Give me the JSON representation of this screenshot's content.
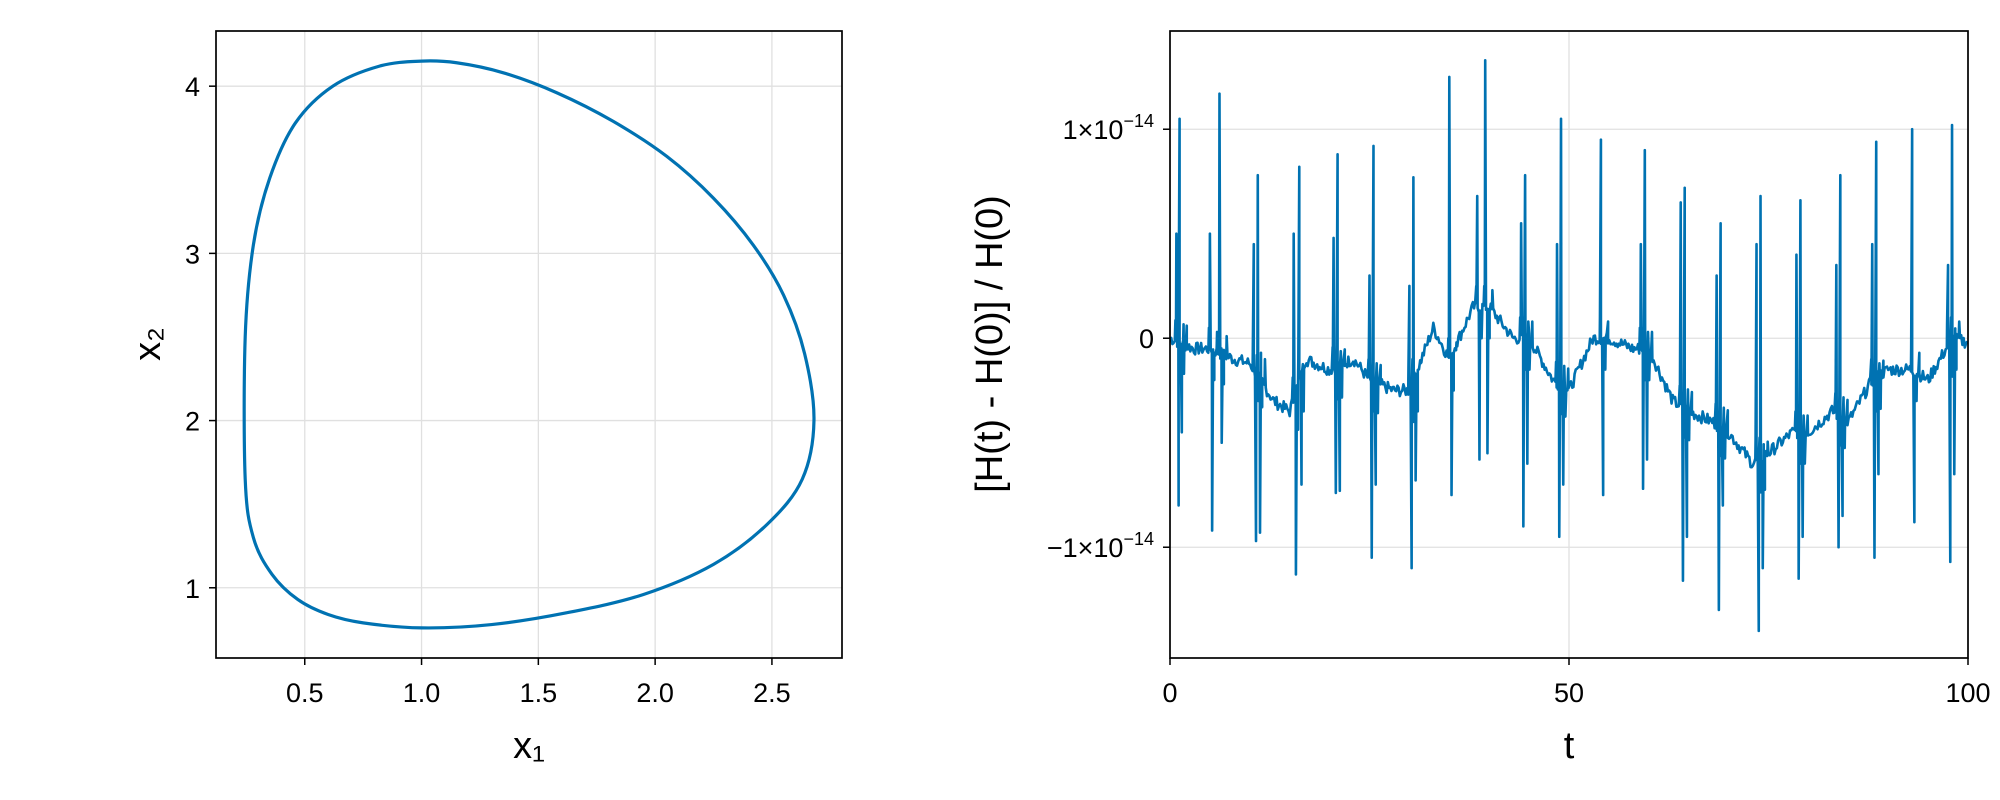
{
  "chart_data": [
    {
      "type": "line",
      "xlabel": "x₁",
      "ylabel": "x₂",
      "xlim": [
        0.12,
        2.8
      ],
      "ylim": [
        0.58,
        4.33
      ],
      "xticks": [
        0.5,
        1.0,
        1.5,
        2.0,
        2.5
      ],
      "xtick_labels": [
        "0.5",
        "1.0",
        "1.5",
        "2.0",
        "2.5"
      ],
      "yticks": [
        1,
        2,
        3,
        4
      ],
      "ytick_labels": [
        "1",
        "2",
        "3",
        "4"
      ],
      "grid": true,
      "series": [
        {
          "color": "#0072b2",
          "closed": true,
          "x": [
            2.68,
            2.64,
            2.55,
            2.42,
            2.25,
            2.05,
            1.82,
            1.58,
            1.35,
            1.15,
            1.0,
            0.82,
            0.62,
            0.46,
            0.35,
            0.28,
            0.245,
            0.245,
            0.28,
            0.36,
            0.47,
            0.6,
            0.75,
            1.0,
            1.3,
            1.62,
            1.95,
            2.25,
            2.48,
            2.63,
            2.68
          ],
          "y": [
            2.0,
            2.4,
            2.75,
            3.05,
            3.33,
            3.58,
            3.79,
            3.96,
            4.08,
            4.14,
            4.15,
            4.12,
            4.0,
            3.78,
            3.45,
            3.05,
            2.5,
            1.65,
            1.3,
            1.08,
            0.93,
            0.84,
            0.79,
            0.76,
            0.78,
            0.85,
            0.96,
            1.14,
            1.38,
            1.65,
            2.0
          ]
        }
      ]
    },
    {
      "type": "line",
      "xlabel": "t",
      "ylabel": "[H(t) - H(0)] / H(0)",
      "xlim": [
        0,
        100
      ],
      "ylim": [
        -1.53e-14,
        1.47e-14
      ],
      "xticks": [
        0,
        50,
        100
      ],
      "xtick_labels": [
        "0",
        "50",
        "100"
      ],
      "yticks": [
        -1e-14,
        0,
        1e-14
      ],
      "ytick_labels": [
        {
          "mantissa": "−1×10",
          "exponent": "−14"
        },
        {
          "mantissa": "0",
          "exponent": ""
        },
        {
          "mantissa": "1×10",
          "exponent": "−14"
        }
      ],
      "grid": true,
      "series": [
        {
          "color": "#0072b2",
          "spike_times": [
            0.8,
            1.2,
            5.0,
            6.2,
            10.5,
            11.0,
            15.5,
            16.2,
            20.5,
            21.0,
            25.0,
            25.5,
            30.0,
            30.5,
            35.0,
            38.5,
            39.5,
            44.0,
            44.5,
            48.5,
            49.0,
            54.0,
            59.0,
            59.5,
            64.0,
            64.5,
            68.5,
            69.0,
            73.5,
            74.0,
            78.5,
            79.0,
            83.5,
            84.0,
            88.0,
            88.5,
            93.0,
            97.5,
            98.0
          ],
          "spike_peaks": [
            5e-15,
            1.05e-14,
            5e-15,
            1.17e-14,
            4.5e-15,
            7.8e-15,
            5e-15,
            8.2e-15,
            4.8e-15,
            8.8e-15,
            3e-15,
            9.2e-15,
            2.5e-15,
            7.7e-15,
            1.25e-14,
            6.8e-15,
            1.33e-14,
            5.5e-15,
            7.8e-15,
            4.5e-15,
            1.05e-14,
            9.5e-15,
            4.5e-15,
            9e-15,
            6.5e-15,
            7.2e-15,
            3e-15,
            5.5e-15,
            4.5e-15,
            6.8e-15,
            4e-15,
            6.6e-15,
            3.5e-15,
            7.8e-15,
            4.5e-15,
            9.4e-15,
            1e-14,
            3.5e-15,
            1.02e-14
          ],
          "spike_troughs": [
            -8e-15,
            -4.5e-15,
            -9.2e-15,
            -5e-15,
            -9.7e-15,
            -9.3e-15,
            -1.13e-14,
            -7e-15,
            -7.4e-15,
            -7.3e-15,
            -1.05e-14,
            -7e-15,
            -1.1e-14,
            -6.8e-15,
            -7.5e-15,
            -5.8e-15,
            -5.5e-15,
            -9e-15,
            -6e-15,
            -9.5e-15,
            -7e-15,
            -7.5e-15,
            -7.2e-15,
            -5.8e-15,
            -1.16e-14,
            -9.5e-15,
            -1.3e-14,
            -8e-15,
            -1.4e-14,
            -1.1e-14,
            -1.15e-14,
            -9.5e-15,
            -1e-14,
            -8.5e-15,
            -1.05e-14,
            -6.5e-15,
            -8.8e-15,
            -1.07e-14,
            -6.5e-15
          ],
          "baseline_t": [
            0,
            3,
            5,
            8,
            10,
            13,
            15,
            17,
            20,
            23,
            25,
            28,
            30,
            33,
            35,
            38,
            40,
            43,
            45,
            48,
            50,
            53,
            55,
            58,
            60,
            63,
            65,
            68,
            70,
            73,
            75,
            78,
            80,
            83,
            85,
            88,
            90,
            93,
            95,
            98,
            100
          ],
          "baseline_v": [
            0.0,
            -5e-16,
            -5e-16,
            -1e-15,
            -1.2e-15,
            -3e-15,
            -3.5e-15,
            -1e-15,
            -1.5e-15,
            -1e-15,
            -2e-15,
            -2.5e-15,
            -2.5e-15,
            5e-16,
            -1e-15,
            1.5e-15,
            1.5e-15,
            0.0,
            0.0,
            -2e-15,
            -2.5e-15,
            0.0,
            0.0,
            -5e-16,
            -5e-16,
            -3e-15,
            -3.5e-15,
            -4e-15,
            -4.5e-15,
            -6e-15,
            -5.5e-15,
            -4.5e-15,
            -4.5e-15,
            -3.5e-15,
            -4e-15,
            -2e-15,
            -1.5e-15,
            -1.5e-15,
            -2e-15,
            0.0,
            -2e-16
          ]
        }
      ]
    }
  ]
}
